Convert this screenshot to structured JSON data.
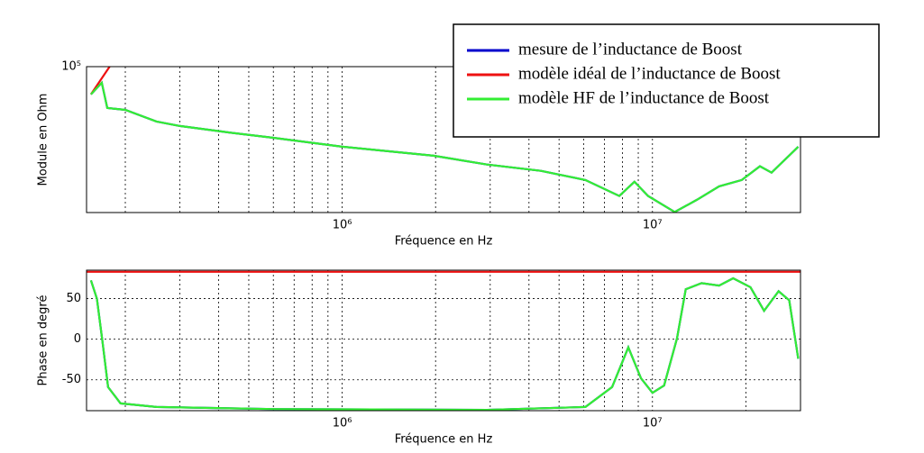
{
  "chart_data": [
    {
      "type": "line",
      "xlabel": "Fréquence en Hz",
      "ylabel": "Module en Ohm",
      "xscale": "log",
      "yscale": "log",
      "grid": true,
      "legend": "upper right",
      "xlim": [
        150000,
        30000000
      ],
      "ylim": [
        15000,
        100000
      ],
      "xticks": [
        {
          "value": 1000000,
          "label": "10⁶"
        },
        {
          "value": 10000000,
          "label": "10⁷"
        }
      ],
      "xminorticks": [
        200000,
        300000,
        400000,
        500000,
        600000,
        700000,
        800000,
        900000,
        2000000,
        3000000,
        4000000,
        5000000,
        6000000,
        7000000,
        8000000,
        9000000,
        20000000
      ],
      "yticks": [
        {
          "value": 100000,
          "label": "10⁵"
        }
      ],
      "series": [
        {
          "name": "mesure de l’inductance de Boost",
          "color": "#0000cc",
          "x": [
            155000,
            168000,
            175000,
            200000,
            252000,
            300000,
            427000,
            596000,
            1000000,
            1970000,
            2930000,
            4370000,
            6080000,
            7820000,
            8750000,
            9680000,
            11800000,
            13900000,
            16400000,
            19400000,
            22200000,
            24200000,
            29500000
          ],
          "values": [
            69700,
            81100,
            58400,
            57000,
            49000,
            46200,
            42600,
            39700,
            35300,
            31400,
            28000,
            25800,
            22900,
            18600,
            22400,
            18600,
            15100,
            17700,
            21100,
            22900,
            27400,
            25200,
            35300
          ]
        },
        {
          "name": "modèle idéal de l’inductance de Boost",
          "color": "#ee1111",
          "x": [
            155000,
            178000
          ],
          "values": [
            69700,
            100000
          ]
        },
        {
          "name": "modèle HF de l’inductance de Boost",
          "color": "#33ee33",
          "x": [
            155000,
            168000,
            175000,
            200000,
            252000,
            300000,
            427000,
            596000,
            1000000,
            1970000,
            2930000,
            4370000,
            6080000,
            7820000,
            8750000,
            9680000,
            11800000,
            13900000,
            16400000,
            19400000,
            22200000,
            24200000,
            29500000
          ],
          "values": [
            69700,
            81100,
            58400,
            57000,
            49000,
            46200,
            42600,
            39700,
            35300,
            31400,
            28000,
            25800,
            22900,
            18600,
            22400,
            18600,
            15100,
            17700,
            21100,
            22900,
            27400,
            25200,
            35300
          ]
        }
      ]
    },
    {
      "type": "line",
      "xlabel": "Fréquence en Hz",
      "ylabel": "Phase en degré",
      "xscale": "log",
      "grid": true,
      "xlim": [
        150000,
        30000000
      ],
      "ylim": [
        -88,
        85
      ],
      "xticks": [
        {
          "value": 1000000,
          "label": "10⁶"
        },
        {
          "value": 10000000,
          "label": "10⁷"
        }
      ],
      "xminorticks": [
        200000,
        300000,
        400000,
        500000,
        600000,
        700000,
        800000,
        900000,
        2000000,
        3000000,
        4000000,
        5000000,
        6000000,
        7000000,
        8000000,
        9000000,
        20000000
      ],
      "yticks": [
        -50,
        0,
        50
      ],
      "series": [
        {
          "color": "#0000cc",
          "x": [
            155000,
            162000,
            169000,
            176000,
            193000,
            252000,
            596000,
            2930000,
            6080000,
            7410000,
            8360000,
            9180000,
            10000000,
            10900000,
            12000000,
            12800000,
            14400000,
            16400000,
            18200000,
            20700000,
            22900000,
            25500000,
            27600000,
            29500000
          ],
          "values": [
            72.5,
            50,
            -4,
            -59,
            -79,
            -83.5,
            -86,
            -87,
            -83.5,
            -59,
            -10,
            -48,
            -66,
            -57,
            1,
            61.5,
            69,
            66,
            75,
            64,
            35,
            59,
            48,
            -24
          ]
        },
        {
          "color": "#ee1111",
          "x": [
            150000,
            30000000
          ],
          "values": [
            83,
            83
          ]
        },
        {
          "color": "#33ee33",
          "x": [
            155000,
            162000,
            169000,
            176000,
            193000,
            252000,
            596000,
            2930000,
            6080000,
            7410000,
            8360000,
            9180000,
            10000000,
            10900000,
            12000000,
            12800000,
            14400000,
            16400000,
            18200000,
            20700000,
            22900000,
            25500000,
            27600000,
            29500000
          ],
          "values": [
            72.5,
            50,
            -4,
            -59,
            -79,
            -83.5,
            -86,
            -87,
            -83.5,
            -59,
            -10,
            -48,
            -66,
            -57,
            1,
            61.5,
            69,
            66,
            75,
            64,
            35,
            59,
            48,
            -24
          ]
        }
      ]
    }
  ]
}
